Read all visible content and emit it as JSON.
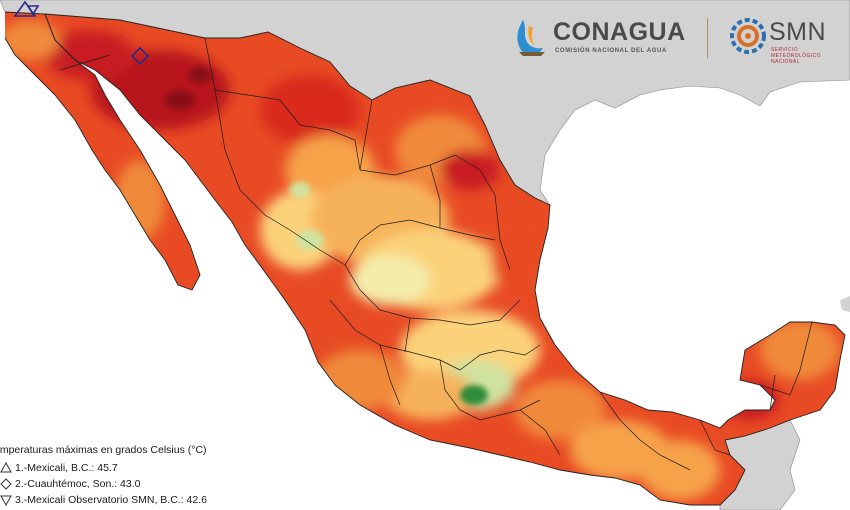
{
  "header": {
    "conagua_name": "CONAGUA",
    "conagua_subtitle": "COMISIÓN NACIONAL DEL AGUA",
    "smn_name": "SMN",
    "smn_subtitle": "SERVICIO METEOROLÓGICO NACIONAL"
  },
  "legend": {
    "title": "emperaturas máximas en grados Celsius (°C)",
    "items": [
      {
        "text": "1.-Mexicali, B.C.: 45.7",
        "symbol": "triangle-icon"
      },
      {
        "text": "2.-Cuauhtémoc, Son.: 43.0",
        "symbol": "diamond-icon"
      },
      {
        "text": "3.-Mexicali Observatorio SMN, B.C.: 42.6",
        "symbol": "triangle-down-icon"
      }
    ]
  },
  "map": {
    "colors": {
      "ocean": "#ffffff",
      "neighbor_land": "#d2d2d2",
      "hottest": "#a01020",
      "very_hot": "#d7301f",
      "hot": "#ef6a2c",
      "warm": "#f6a24a",
      "mild": "#fbd27a",
      "cool": "#f4edaa",
      "cooler": "#cfe3a0",
      "coolest": "#2e8b3a",
      "marker": "#2a2a8a",
      "boundary": "#222222"
    }
  }
}
